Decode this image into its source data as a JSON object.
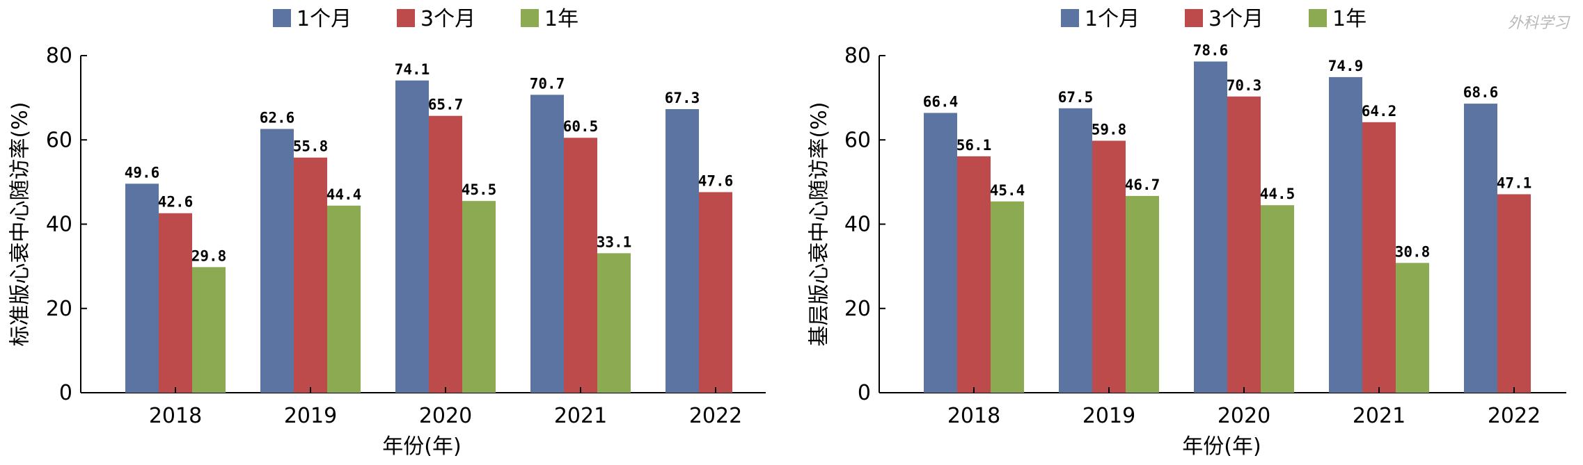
{
  "colors": {
    "m1": "#5B74A2",
    "m3": "#BD4B4C",
    "y1": "#8BAA52"
  },
  "watermark": {
    "text": "外科学习"
  },
  "chart_data": [
    {
      "type": "bar",
      "categories": [
        "2018",
        "2019",
        "2020",
        "2021",
        "2022"
      ],
      "series": [
        {
          "name": "1个月",
          "color_key": "m1",
          "values": [
            49.6,
            62.6,
            74.1,
            70.7,
            67.3
          ]
        },
        {
          "name": "3个月",
          "color_key": "m3",
          "values": [
            42.6,
            55.8,
            65.7,
            60.5,
            47.6
          ]
        },
        {
          "name": "1年",
          "color_key": "y1",
          "values": [
            29.8,
            44.4,
            45.5,
            33.1,
            null
          ]
        }
      ],
      "ylim": [
        0,
        80
      ],
      "yticks": [
        0,
        20,
        40,
        60,
        80
      ],
      "xlabel": "年份(年)",
      "ylabel": "标准版心衰中心随访率(%)",
      "legend_position": "top"
    },
    {
      "type": "bar",
      "categories": [
        "2018",
        "2019",
        "2020",
        "2021",
        "2022"
      ],
      "series": [
        {
          "name": "1个月",
          "color_key": "m1",
          "values": [
            66.4,
            67.5,
            78.6,
            74.9,
            68.6
          ]
        },
        {
          "name": "3个月",
          "color_key": "m3",
          "values": [
            56.1,
            59.8,
            70.3,
            64.2,
            47.1
          ]
        },
        {
          "name": "1年",
          "color_key": "y1",
          "values": [
            45.4,
            46.7,
            44.5,
            30.8,
            null
          ]
        }
      ],
      "ylim": [
        0,
        80
      ],
      "yticks": [
        0,
        20,
        40,
        60,
        80
      ],
      "xlabel": "年份(年)",
      "ylabel": "基层版心衰中心随访率(%)",
      "legend_position": "top"
    }
  ]
}
